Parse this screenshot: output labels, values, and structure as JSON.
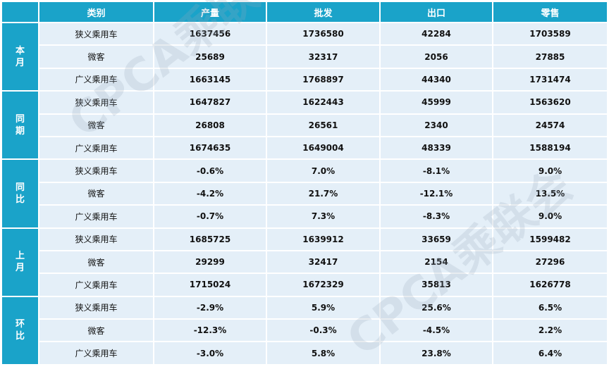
{
  "columns": [
    "类别",
    "产量",
    "批发",
    "出口",
    "零售"
  ],
  "groups": [
    {
      "label": "本月",
      "rows": [
        [
          "狭义乘用车",
          "1637456",
          "1736580",
          "42284",
          "1703589"
        ],
        [
          "微客",
          "25689",
          "32317",
          "2056",
          "27885"
        ],
        [
          "广义乘用车",
          "1663145",
          "1768897",
          "44340",
          "1731474"
        ]
      ]
    },
    {
      "label": "同期",
      "rows": [
        [
          "狭义乘用车",
          "1647827",
          "1622443",
          "45999",
          "1563620"
        ],
        [
          "微客",
          "26808",
          "26561",
          "2340",
          "24574"
        ],
        [
          "广义乘用车",
          "1674635",
          "1649004",
          "48339",
          "1588194"
        ]
      ]
    },
    {
      "label": "同比",
      "rows": [
        [
          "狭义乘用车",
          "-0.6%",
          "7.0%",
          "-8.1%",
          "9.0%"
        ],
        [
          "微客",
          "-4.2%",
          "21.7%",
          "-12.1%",
          "13.5%"
        ],
        [
          "广义乘用车",
          "-0.7%",
          "7.3%",
          "-8.3%",
          "9.0%"
        ]
      ]
    },
    {
      "label": "上月",
      "rows": [
        [
          "狭义乘用车",
          "1685725",
          "1639912",
          "33659",
          "1599482"
        ],
        [
          "微客",
          "29299",
          "32417",
          "2154",
          "27296"
        ],
        [
          "广义乘用车",
          "1715024",
          "1672329",
          "35813",
          "1626778"
        ]
      ]
    },
    {
      "label": "环比",
      "rows": [
        [
          "狭义乘用车",
          "-2.9%",
          "5.9%",
          "25.6%",
          "6.5%"
        ],
        [
          "微客",
          "-12.3%",
          "-0.3%",
          "-4.5%",
          "2.2%"
        ],
        [
          "广义乘用车",
          "-3.0%",
          "5.8%",
          "23.8%",
          "6.4%"
        ]
      ]
    }
  ],
  "watermark": "CPCA乘联会",
  "colors": {
    "header": "#1aa3c9",
    "cell": "#e4eff8",
    "text": "#111111"
  }
}
